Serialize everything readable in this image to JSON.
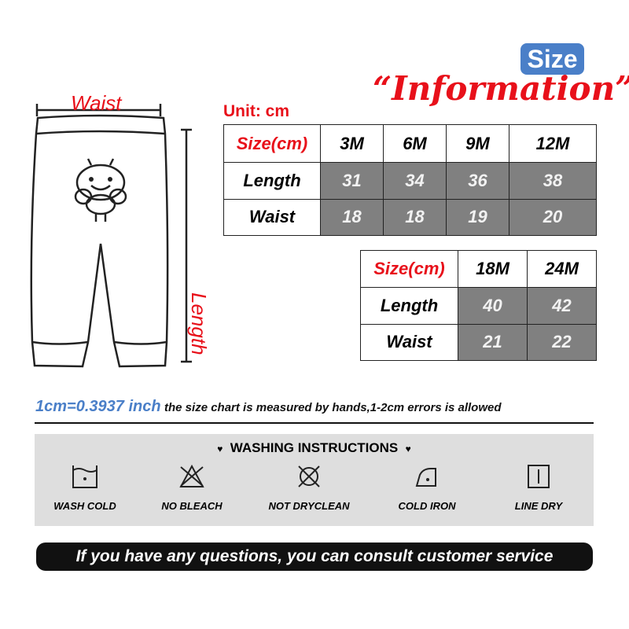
{
  "header": {
    "badge": "Size",
    "title": "“Information”",
    "unit": "Unit: cm"
  },
  "diagram": {
    "waist_label": "Waist",
    "length_label": "Length"
  },
  "table1": {
    "header": [
      "Size(cm)",
      "3M",
      "6M",
      "9M",
      "12M"
    ],
    "rows": [
      {
        "label": "Length",
        "values": [
          "31",
          "34",
          "36",
          "38"
        ]
      },
      {
        "label": "Waist",
        "values": [
          "18",
          "18",
          "19",
          "20"
        ]
      }
    ]
  },
  "table2": {
    "header": [
      "Size(cm)",
      "18M",
      "24M"
    ],
    "rows": [
      {
        "label": "Length",
        "values": [
          "40",
          "42"
        ]
      },
      {
        "label": "Waist",
        "values": [
          "21",
          "22"
        ]
      }
    ]
  },
  "note": {
    "conversion": "1cm=0.3937 inch",
    "text": "the size chart is measured by hands,1-2cm errors is allowed"
  },
  "washing": {
    "title": "WASHING INSTRUCTIONS",
    "items": [
      {
        "icon": "wash-cold-icon",
        "label": "WASH COLD"
      },
      {
        "icon": "no-bleach-icon",
        "label": "NO BLEACH"
      },
      {
        "icon": "not-dryclean-icon",
        "label": "NOT DRYCLEAN"
      },
      {
        "icon": "cold-iron-icon",
        "label": "COLD IRON"
      },
      {
        "icon": "line-dry-icon",
        "label": "LINE DRY"
      }
    ]
  },
  "footer": {
    "text": "If you have any questions, you can consult customer service"
  },
  "colors": {
    "red": "#e8101a",
    "blue": "#4a7fc8",
    "gray": "#808080",
    "panel": "#dedede"
  }
}
